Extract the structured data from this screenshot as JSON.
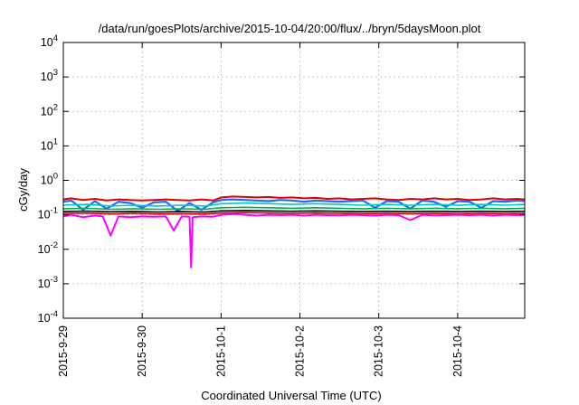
{
  "chart_data": {
    "type": "line",
    "title": "/data/run/goesPlots/archive/2015-10-04/20:00/flux/../bryn/5daysMoon.plot",
    "xlabel": "Coordinated Universal Time (UTC)",
    "ylabel": "cGy/day",
    "yscale": "log",
    "ylim": [
      0.0001,
      10000
    ],
    "xlim": [
      0,
      5.85
    ],
    "x_ticks": [
      {
        "x": 0,
        "label": "2015-9-29"
      },
      {
        "x": 1,
        "label": "2015-9-30"
      },
      {
        "x": 2,
        "label": "2015-10-1"
      },
      {
        "x": 3,
        "label": "2015-10-2"
      },
      {
        "x": 4,
        "label": "2015-10-3"
      },
      {
        "x": 5,
        "label": "2015-10-4"
      }
    ],
    "y_ticks": [
      {
        "value": 0.0001,
        "base": "10",
        "exp": "-4"
      },
      {
        "value": 0.001,
        "base": "10",
        "exp": "-3"
      },
      {
        "value": 0.01,
        "base": "10",
        "exp": "-2"
      },
      {
        "value": 0.1,
        "base": "10",
        "exp": "-1"
      },
      {
        "value": 1,
        "base": "10",
        "exp": "0"
      },
      {
        "value": 10,
        "base": "10",
        "exp": "1"
      },
      {
        "value": 100,
        "base": "10",
        "exp": "2"
      },
      {
        "value": 1000,
        "base": "10",
        "exp": "3"
      },
      {
        "value": 10000,
        "base": "10",
        "exp": "4"
      }
    ],
    "grid": true,
    "legend": "none",
    "series": [
      {
        "color": "#e00000",
        "width": 2.0,
        "x": [
          0,
          0.1,
          0.25,
          0.4,
          0.55,
          0.7,
          0.85,
          1.0,
          1.15,
          1.3,
          1.45,
          1.6,
          1.75,
          1.9,
          2.0,
          2.15,
          2.3,
          2.45,
          2.6,
          2.75,
          2.9,
          3.05,
          3.2,
          3.35,
          3.5,
          3.65,
          3.8,
          3.95,
          4.1,
          4.25,
          4.4,
          4.55,
          4.7,
          4.85,
          5.0,
          5.15,
          5.3,
          5.45,
          5.6,
          5.75,
          5.85
        ],
        "y": [
          0.28,
          0.3,
          0.27,
          0.29,
          0.26,
          0.28,
          0.27,
          0.26,
          0.27,
          0.28,
          0.27,
          0.26,
          0.28,
          0.26,
          0.32,
          0.34,
          0.33,
          0.32,
          0.33,
          0.31,
          0.32,
          0.3,
          0.31,
          0.29,
          0.3,
          0.28,
          0.29,
          0.3,
          0.28,
          0.27,
          0.29,
          0.28,
          0.3,
          0.28,
          0.29,
          0.27,
          0.28,
          0.3,
          0.28,
          0.29,
          0.28
        ]
      },
      {
        "color": "#1e6cff",
        "width": 2.2,
        "x": [
          0,
          0.1,
          0.25,
          0.4,
          0.55,
          0.7,
          0.85,
          1.0,
          1.15,
          1.3,
          1.45,
          1.6,
          1.75,
          1.9,
          2.0,
          2.15,
          2.3,
          2.45,
          2.6,
          2.75,
          2.9,
          3.05,
          3.2,
          3.35,
          3.5,
          3.65,
          3.8,
          3.95,
          4.1,
          4.25,
          4.4,
          4.55,
          4.7,
          4.85,
          5.0,
          5.15,
          5.3,
          5.45,
          5.6,
          5.75,
          5.85
        ],
        "y": [
          0.24,
          0.26,
          0.14,
          0.25,
          0.15,
          0.24,
          0.22,
          0.16,
          0.23,
          0.24,
          0.13,
          0.22,
          0.14,
          0.23,
          0.27,
          0.28,
          0.27,
          0.26,
          0.25,
          0.27,
          0.26,
          0.24,
          0.26,
          0.25,
          0.24,
          0.25,
          0.26,
          0.16,
          0.25,
          0.24,
          0.15,
          0.26,
          0.24,
          0.17,
          0.25,
          0.24,
          0.16,
          0.25,
          0.24,
          0.26,
          0.25
        ]
      },
      {
        "color": "#00c8c8",
        "width": 1.6,
        "x": [
          0,
          0.3,
          0.6,
          0.9,
          1.2,
          1.5,
          1.8,
          2.0,
          2.3,
          2.6,
          2.9,
          3.2,
          3.5,
          3.8,
          4.1,
          4.4,
          4.7,
          5.0,
          5.3,
          5.6,
          5.85
        ],
        "y": [
          0.19,
          0.2,
          0.18,
          0.19,
          0.18,
          0.19,
          0.18,
          0.21,
          0.22,
          0.21,
          0.2,
          0.21,
          0.2,
          0.19,
          0.2,
          0.19,
          0.2,
          0.19,
          0.2,
          0.19,
          0.2
        ]
      },
      {
        "color": "#00b050",
        "width": 1.6,
        "x": [
          0,
          0.3,
          0.6,
          0.9,
          1.2,
          1.5,
          1.8,
          2.0,
          2.3,
          2.6,
          2.9,
          3.2,
          3.5,
          3.8,
          4.1,
          4.4,
          4.7,
          5.0,
          5.3,
          5.6,
          5.85
        ],
        "y": [
          0.15,
          0.155,
          0.145,
          0.15,
          0.145,
          0.15,
          0.145,
          0.16,
          0.165,
          0.16,
          0.155,
          0.16,
          0.155,
          0.15,
          0.155,
          0.15,
          0.155,
          0.15,
          0.155,
          0.15,
          0.155
        ]
      },
      {
        "color": "#000000",
        "width": 1.6,
        "x": [
          0,
          0.3,
          0.6,
          0.9,
          1.2,
          1.5,
          1.8,
          2.0,
          2.3,
          2.6,
          2.9,
          3.2,
          3.5,
          3.8,
          4.1,
          4.4,
          4.7,
          5.0,
          5.3,
          5.6,
          5.85
        ],
        "y": [
          0.125,
          0.128,
          0.122,
          0.125,
          0.12,
          0.124,
          0.12,
          0.13,
          0.133,
          0.13,
          0.127,
          0.13,
          0.127,
          0.124,
          0.127,
          0.124,
          0.127,
          0.124,
          0.127,
          0.124,
          0.127
        ]
      },
      {
        "color": "#c80000",
        "width": 1.6,
        "x": [
          0,
          0.3,
          0.6,
          0.9,
          1.2,
          1.5,
          1.8,
          2.0,
          2.3,
          2.6,
          2.9,
          3.2,
          3.5,
          3.8,
          4.1,
          4.4,
          4.7,
          5.0,
          5.3,
          5.6,
          5.85
        ],
        "y": [
          0.11,
          0.112,
          0.106,
          0.11,
          0.105,
          0.108,
          0.105,
          0.113,
          0.116,
          0.113,
          0.11,
          0.113,
          0.11,
          0.108,
          0.11,
          0.108,
          0.11,
          0.108,
          0.11,
          0.108,
          0.11
        ]
      },
      {
        "color": "#ff00ff",
        "width": 2.0,
        "x": [
          0,
          0.1,
          0.25,
          0.4,
          0.5,
          0.6,
          0.7,
          0.85,
          1.0,
          1.15,
          1.3,
          1.4,
          1.5,
          1.6,
          1.62,
          1.64,
          1.75,
          1.9,
          2.0,
          2.15,
          2.3,
          2.45,
          2.6,
          2.75,
          2.9,
          3.05,
          3.2,
          3.35,
          3.5,
          3.65,
          3.8,
          3.95,
          4.1,
          4.25,
          4.4,
          4.55,
          4.7,
          4.85,
          5.0,
          5.15,
          5.3,
          5.45,
          5.6,
          5.75,
          5.85
        ],
        "y": [
          0.09,
          0.1,
          0.085,
          0.095,
          0.09,
          0.025,
          0.09,
          0.085,
          0.09,
          0.088,
          0.09,
          0.035,
          0.09,
          0.088,
          0.003,
          0.085,
          0.09,
          0.088,
          0.1,
          0.105,
          0.1,
          0.095,
          0.1,
          0.098,
          0.1,
          0.095,
          0.1,
          0.098,
          0.096,
          0.1,
          0.098,
          0.095,
          0.1,
          0.098,
          0.07,
          0.1,
          0.096,
          0.098,
          0.1,
          0.097,
          0.1,
          0.095,
          0.1,
          0.098,
          0.1
        ]
      }
    ]
  }
}
